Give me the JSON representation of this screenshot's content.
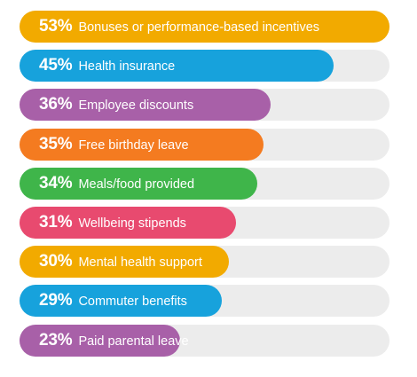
{
  "chart_data": {
    "type": "bar",
    "orientation": "horizontal",
    "value_unit": "%",
    "xlim": [
      0,
      100
    ],
    "grid": false,
    "legend": "none",
    "categories": [
      "Bonuses or performance-based incentives",
      "Health insurance",
      "Employee discounts",
      "Free birthday leave",
      "Meals/food provided",
      "Wellbeing stipends",
      "Mental health support",
      "Commuter benefits",
      "Paid parental leave"
    ],
    "values": [
      53,
      45,
      36,
      35,
      34,
      31,
      30,
      29,
      23
    ],
    "value_labels": [
      "53%",
      "45%",
      "36%",
      "35%",
      "34%",
      "31%",
      "30%",
      "29%",
      "23%"
    ],
    "bar_colors": [
      "#f2aa00",
      "#17a2dc",
      "#a860a8",
      "#f47b20",
      "#3fb54a",
      "#e84a6f",
      "#f2aa00",
      "#17a2dc",
      "#a860a8"
    ],
    "track_color": "#ececec"
  }
}
